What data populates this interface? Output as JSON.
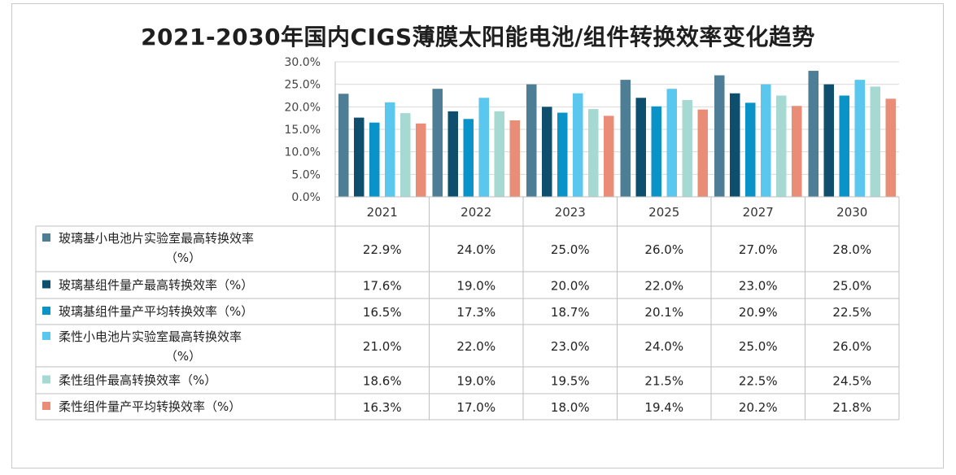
{
  "chart_data": {
    "type": "bar",
    "title": "2021-2030年国内CIGS薄膜太阳能电池/组件转换效率变化趋势",
    "categories": [
      "2021",
      "2022",
      "2023",
      "2025",
      "2027",
      "2030"
    ],
    "ylim": [
      0,
      30
    ],
    "yticks": [
      "0.0%",
      "5.0%",
      "10.0%",
      "15.0%",
      "20.0%",
      "25.0%",
      "30.0%"
    ],
    "grid": true,
    "legend": "data-table-left",
    "series": [
      {
        "name": "玻璃基小电池片实验室最高转换效率（%）",
        "color": "#4e7d96",
        "values": [
          22.9,
          24.0,
          25.0,
          26.0,
          27.0,
          28.0
        ],
        "labels": [
          "22.9%",
          "24.0%",
          "25.0%",
          "26.0%",
          "27.0%",
          "28.0%"
        ]
      },
      {
        "name": "玻璃基组件量产最高转换效率（%）",
        "color": "#0d4f6c",
        "values": [
          17.6,
          19.0,
          20.0,
          22.0,
          23.0,
          25.0
        ],
        "labels": [
          "17.6%",
          "19.0%",
          "20.0%",
          "22.0%",
          "23.0%",
          "25.0%"
        ]
      },
      {
        "name": "玻璃基组件量产平均转换效率（%）",
        "color": "#0a93c9",
        "values": [
          16.5,
          17.3,
          18.7,
          20.1,
          20.9,
          22.5
        ],
        "labels": [
          "16.5%",
          "17.3%",
          "18.7%",
          "20.1%",
          "20.9%",
          "22.5%"
        ]
      },
      {
        "name": "柔性小电池片实验室最高转换效率（%）",
        "color": "#5ac8ee",
        "values": [
          21.0,
          22.0,
          23.0,
          24.0,
          25.0,
          26.0
        ],
        "labels": [
          "21.0%",
          "22.0%",
          "23.0%",
          "24.0%",
          "25.0%",
          "26.0%"
        ]
      },
      {
        "name": "柔性组件最高转换效率（%）",
        "color": "#a6d9d2",
        "values": [
          18.6,
          19.0,
          19.5,
          21.5,
          22.5,
          24.5
        ],
        "labels": [
          "18.6%",
          "19.0%",
          "19.5%",
          "21.5%",
          "22.5%",
          "24.5%"
        ]
      },
      {
        "name": "柔性组件量产平均转换效率（%）",
        "color": "#ea8d77",
        "values": [
          16.3,
          17.0,
          18.0,
          19.4,
          20.2,
          21.8
        ],
        "labels": [
          "16.3%",
          "17.0%",
          "18.0%",
          "19.4%",
          "20.2%",
          "21.8%"
        ]
      }
    ]
  }
}
